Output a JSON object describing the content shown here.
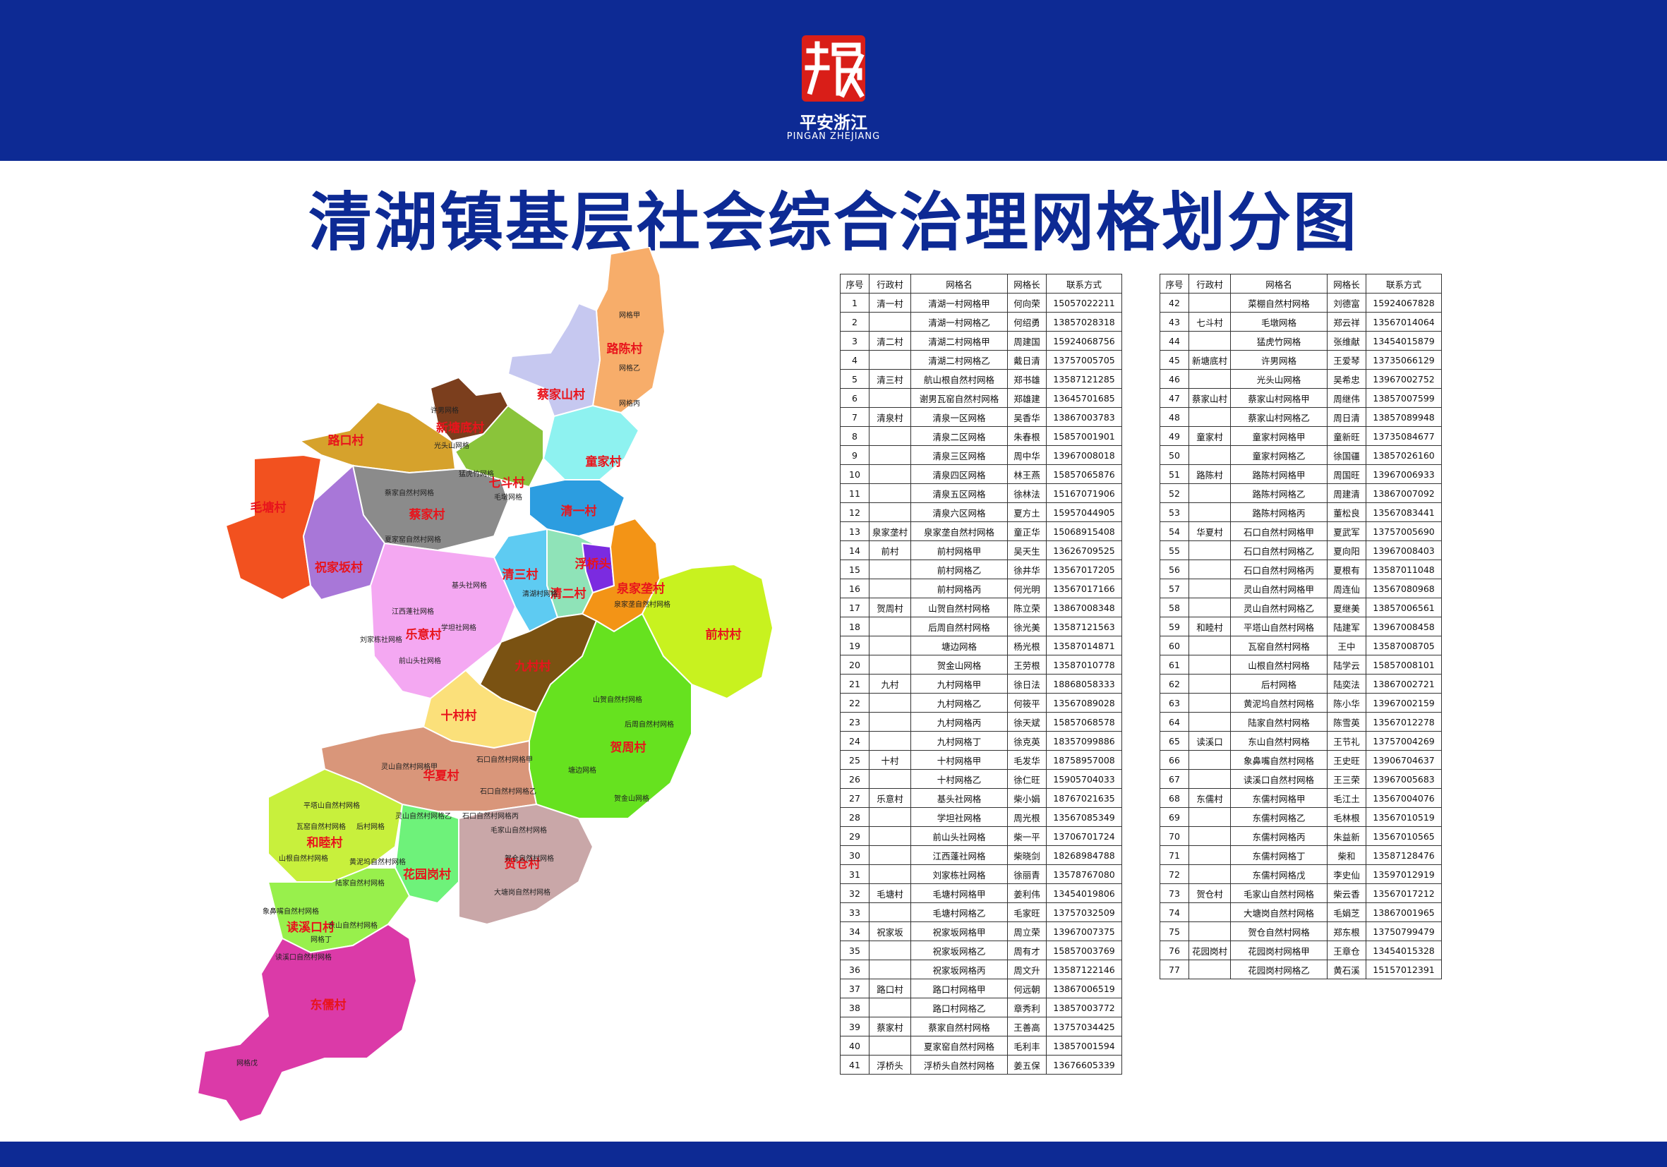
{
  "logo": {
    "mark": "浙",
    "name_cn": "平安浙江",
    "name_en": "PINGAN ZHEJIANG"
  },
  "title": "清湖镇基层社会综合治理网格划分图",
  "colors": {
    "header_blue": "#0d2a94",
    "logo_red": "#d91e18",
    "village_label": "#e8141c"
  },
  "map": {
    "villages": [
      {
        "name": "路陈村",
        "color": "#f7ad6a"
      },
      {
        "name": "蔡家山村",
        "color": "#c6c8f0"
      },
      {
        "name": "新塘底村",
        "color": "#7b3e1d"
      },
      {
        "name": "路口村",
        "color": "#d6a22c"
      },
      {
        "name": "童家村",
        "color": "#8ef2f0"
      },
      {
        "name": "七斗村",
        "color": "#8ac43a"
      },
      {
        "name": "毛塘村",
        "color": "#f2511f"
      },
      {
        "name": "蔡家村",
        "color": "#8b8b8b"
      },
      {
        "name": "清一村",
        "color": "#2c9de0"
      },
      {
        "name": "祝家坂村",
        "color": "#a877d8"
      },
      {
        "name": "清二村",
        "color": "#8fe3b8"
      },
      {
        "name": "清三村",
        "color": "#5ecbf2"
      },
      {
        "name": "浮桥头",
        "color": "#7b2be0"
      },
      {
        "name": "泉家垄村",
        "color": "#f39416"
      },
      {
        "name": "前村村",
        "color": "#c8f21f"
      },
      {
        "name": "乐意村",
        "color": "#f4a8f2"
      },
      {
        "name": "九村村",
        "color": "#7a5212"
      },
      {
        "name": "十村村",
        "color": "#fbe07a"
      },
      {
        "name": "贺周村",
        "color": "#66e21f"
      },
      {
        "name": "华夏村",
        "color": "#d9967a"
      },
      {
        "name": "和睦村",
        "color": "#c8f03c"
      },
      {
        "name": "花园岗村",
        "color": "#6ef27a"
      },
      {
        "name": "贺仓村",
        "color": "#c9a7a8"
      },
      {
        "name": "读溪口村",
        "color": "#98f04c"
      },
      {
        "name": "东儒村",
        "color": "#db3aa8"
      }
    ],
    "grid_labels": [
      "网格甲",
      "网格乙",
      "网格丙",
      "网格丁",
      "网格戊",
      "许男网格",
      "光头山网格",
      "猛虎竹网格",
      "毛墩网格",
      "蔡家自然村网格",
      "夏家窑自然村网格",
      "基头社网格",
      "江西蓬社网格",
      "学坦社网格",
      "刘家栋社网格",
      "前山头社网格",
      "山贺自然村网格",
      "后周自然村网格",
      "塘边网格",
      "贺金山网格",
      "灵山自然村网格甲",
      "灵山自然村网格乙",
      "石口自然村网格甲",
      "石口自然村网格乙",
      "石口自然村网格丙",
      "平塔山自然村网格",
      "瓦窑自然村网格",
      "后村网格",
      "山根自然村网格",
      "黄泥坞自然村网格",
      "陆家自然村网格",
      "毛家山自然村网格",
      "贺仓自然村网格",
      "大塘岗自然村网格",
      "象鼻嘴自然村网格",
      "东山自然村网格",
      "读溪口自然村网格",
      "泉家垄自然村网格",
      "清湖村网格"
    ]
  },
  "table": {
    "headers": [
      "序号",
      "行政村",
      "网格名",
      "网格长",
      "联系方式"
    ],
    "rows": [
      [
        "1",
        "清一村",
        "清湖一村网格甲",
        "何向荣",
        "15057022211"
      ],
      [
        "2",
        "",
        "清湖一村网格乙",
        "何绍勇",
        "13857028318"
      ],
      [
        "3",
        "清二村",
        "清湖二村网格甲",
        "周建国",
        "15924068756"
      ],
      [
        "4",
        "",
        "清湖二村网格乙",
        "戴日清",
        "13757005705"
      ],
      [
        "5",
        "清三村",
        "航山根自然村网格",
        "郑书雄",
        "13587121285"
      ],
      [
        "6",
        "",
        "谢男瓦窑自然村网格",
        "郑雄建",
        "13645701685"
      ],
      [
        "7",
        "清泉村",
        "清泉一区网格",
        "吴香华",
        "13867003783"
      ],
      [
        "8",
        "",
        "清泉二区网格",
        "朱春根",
        "15857001901"
      ],
      [
        "9",
        "",
        "清泉三区网格",
        "周中华",
        "13967008018"
      ],
      [
        "10",
        "",
        "清泉四区网格",
        "林王燕",
        "15857065876"
      ],
      [
        "11",
        "",
        "清泉五区网格",
        "徐林法",
        "15167071906"
      ],
      [
        "12",
        "",
        "清泉六区网格",
        "夏方土",
        "15957044905"
      ],
      [
        "13",
        "泉家垄村",
        "泉家垄自然村网格",
        "童正华",
        "15068915408"
      ],
      [
        "14",
        "前村",
        "前村网格甲",
        "吴天生",
        "13626709525"
      ],
      [
        "15",
        "",
        "前村网格乙",
        "徐井华",
        "13567017205"
      ],
      [
        "16",
        "",
        "前村网格丙",
        "何光明",
        "13567017166"
      ],
      [
        "17",
        "贺周村",
        "山贺自然村网格",
        "陈立荣",
        "13867008348"
      ],
      [
        "18",
        "",
        "后周自然村网格",
        "徐光美",
        "13587121563"
      ],
      [
        "19",
        "",
        "塘边网格",
        "杨光根",
        "13587014871"
      ],
      [
        "20",
        "",
        "贺金山网格",
        "王劳根",
        "13587010778"
      ],
      [
        "21",
        "九村",
        "九村网格甲",
        "徐日法",
        "18868058333"
      ],
      [
        "22",
        "",
        "九村网格乙",
        "何筱平",
        "13567089028"
      ],
      [
        "23",
        "",
        "九村网格丙",
        "徐天斌",
        "15857068578"
      ],
      [
        "24",
        "",
        "九村网格丁",
        "徐克英",
        "18357099886"
      ],
      [
        "25",
        "十村",
        "十村网格甲",
        "毛发华",
        "18758957008"
      ],
      [
        "26",
        "",
        "十村网格乙",
        "徐仁旺",
        "15905704033"
      ],
      [
        "27",
        "乐意村",
        "基头社网格",
        "柴小娟",
        "18767021635"
      ],
      [
        "28",
        "",
        "学坦社网格",
        "周光根",
        "13567085349"
      ],
      [
        "29",
        "",
        "前山头社网格",
        "柴一平",
        "13706701724"
      ],
      [
        "30",
        "",
        "江西蓬社网格",
        "柴晓剑",
        "18268984788"
      ],
      [
        "31",
        "",
        "刘家栋社网格",
        "徐丽青",
        "13578767080"
      ],
      [
        "32",
        "毛塘村",
        "毛塘村网格甲",
        "姜利伟",
        "13454019806"
      ],
      [
        "33",
        "",
        "毛塘村网格乙",
        "毛家旺",
        "13757032509"
      ],
      [
        "34",
        "祝家坂",
        "祝家坂网格甲",
        "周立荣",
        "13967007375"
      ],
      [
        "35",
        "",
        "祝家坂网格乙",
        "周有才",
        "15857003769"
      ],
      [
        "36",
        "",
        "祝家坂网格丙",
        "周文升",
        "13587122146"
      ],
      [
        "37",
        "路口村",
        "路口村网格甲",
        "何远朝",
        "13867006519"
      ],
      [
        "38",
        "",
        "路口村网格乙",
        "章秀利",
        "13857003772"
      ],
      [
        "39",
        "蔡家村",
        "蔡家自然村网格",
        "王善高",
        "13757034425"
      ],
      [
        "40",
        "",
        "夏家窑自然村网格",
        "毛利丰",
        "13857001594"
      ],
      [
        "41",
        "浮桥头",
        "浮桥头自然村网格",
        "姜五保",
        "13676605339"
      ],
      [
        "42",
        "",
        "菜棚自然村网格",
        "刘德富",
        "15924067828"
      ],
      [
        "43",
        "七斗村",
        "毛墩网格",
        "郑云祥",
        "13567014064"
      ],
      [
        "44",
        "",
        "猛虎竹网格",
        "张维献",
        "13454015879"
      ],
      [
        "45",
        "新塘底村",
        "许男网格",
        "王爱琴",
        "13735066129"
      ],
      [
        "46",
        "",
        "光头山网格",
        "吴希忠",
        "13967002752"
      ],
      [
        "47",
        "蔡家山村",
        "蔡家山村网格甲",
        "周继伟",
        "13857007599"
      ],
      [
        "48",
        "",
        "蔡家山村网格乙",
        "周日清",
        "13857089948"
      ],
      [
        "49",
        "童家村",
        "童家村网格甲",
        "童新旺",
        "13735084677"
      ],
      [
        "50",
        "",
        "童家村网格乙",
        "徐国疆",
        "13857026160"
      ],
      [
        "51",
        "路陈村",
        "路陈村网格甲",
        "周国旺",
        "13967006933"
      ],
      [
        "52",
        "",
        "路陈村网格乙",
        "周建清",
        "13867007092"
      ],
      [
        "53",
        "",
        "路陈村网格丙",
        "董松良",
        "13567083441"
      ],
      [
        "54",
        "华夏村",
        "石口自然村网格甲",
        "夏武军",
        "13757005690"
      ],
      [
        "55",
        "",
        "石口自然村网格乙",
        "夏向阳",
        "13967008403"
      ],
      [
        "56",
        "",
        "石口自然村网格丙",
        "夏根有",
        "13587011048"
      ],
      [
        "57",
        "",
        "灵山自然村网格甲",
        "周连仙",
        "13567080968"
      ],
      [
        "58",
        "",
        "灵山自然村网格乙",
        "夏继美",
        "13857006561"
      ],
      [
        "59",
        "和睦村",
        "平塔山自然村网格",
        "陆建军",
        "13967008458"
      ],
      [
        "60",
        "",
        "瓦窑自然村网格",
        "王中",
        "13587008705"
      ],
      [
        "61",
        "",
        "山根自然村网格",
        "陆学云",
        "15857008101"
      ],
      [
        "62",
        "",
        "后村网格",
        "陆奕法",
        "13867002721"
      ],
      [
        "63",
        "",
        "黄泥坞自然村网格",
        "陈小华",
        "13967002159"
      ],
      [
        "64",
        "",
        "陆家自然村网格",
        "陈雪英",
        "13567012278"
      ],
      [
        "65",
        "读溪口",
        "东山自然村网格",
        "王节礼",
        "13757004269"
      ],
      [
        "66",
        "",
        "象鼻嘴自然村网格",
        "王史旺",
        "13906704637"
      ],
      [
        "67",
        "",
        "读溪口自然村网格",
        "王三荣",
        "13967005683"
      ],
      [
        "68",
        "东儒村",
        "东儒村网格甲",
        "毛江土",
        "13567004076"
      ],
      [
        "69",
        "",
        "东儒村网格乙",
        "毛林根",
        "13567010519"
      ],
      [
        "70",
        "",
        "东儒村网格丙",
        "朱益新",
        "13567010565"
      ],
      [
        "71",
        "",
        "东儒村网格丁",
        "柴和",
        "13587128476"
      ],
      [
        "72",
        "",
        "东儒村网格戊",
        "李史仙",
        "13597012919"
      ],
      [
        "73",
        "贺仓村",
        "毛家山自然村网格",
        "柴云香",
        "13567017212"
      ],
      [
        "74",
        "",
        "大塘岗自然村网格",
        "毛娟芝",
        "13867001965"
      ],
      [
        "75",
        "",
        "贺仓自然村网格",
        "郑东根",
        "13750799479"
      ],
      [
        "76",
        "花园岗村",
        "花园岗村网格甲",
        "王章仓",
        "13454015328"
      ],
      [
        "77",
        "",
        "花园岗村网格乙",
        "黄石溪",
        "15157012391"
      ]
    ]
  }
}
